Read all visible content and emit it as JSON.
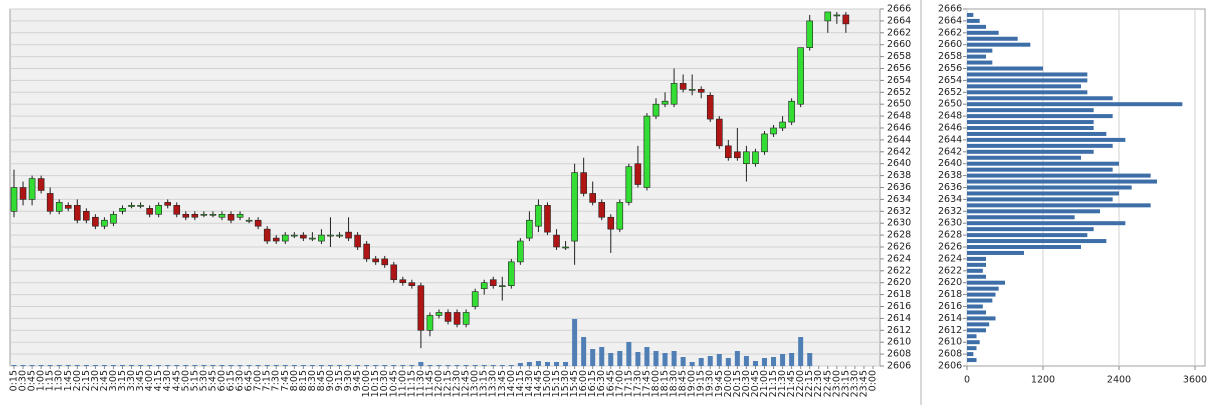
{
  "chart_data": [
    {
      "type": "candlestick",
      "categories": [
        "0:15",
        "0:30",
        "0:45",
        "1:00",
        "1:15",
        "1:30",
        "1:45",
        "2:00",
        "2:15",
        "2:30",
        "2:45",
        "3:00",
        "3:15",
        "3:30",
        "3:45",
        "4:00",
        "4:15",
        "4:30",
        "4:45",
        "5:00",
        "5:15",
        "5:30",
        "5:45",
        "6:00",
        "6:15",
        "6:30",
        "6:45",
        "7:00",
        "7:15",
        "7:30",
        "7:45",
        "8:00",
        "8:15",
        "8:30",
        "8:45",
        "9:00",
        "9:15",
        "9:30",
        "9:45",
        "10:00",
        "10:15",
        "10:30",
        "10:45",
        "11:00",
        "11:15",
        "11:30",
        "11:45",
        "12:00",
        "12:15",
        "12:30",
        "12:45",
        "13:00",
        "13:15",
        "13:30",
        "13:45",
        "14:00",
        "14:15",
        "14:30",
        "14:45",
        "15:00",
        "15:15",
        "15:30",
        "15:45",
        "16:00",
        "16:15",
        "16:30",
        "16:45",
        "17:00",
        "17:15",
        "17:30",
        "17:45",
        "18:00",
        "18:15",
        "18:30",
        "18:45",
        "19:00",
        "19:15",
        "19:30",
        "19:45",
        "20:00",
        "20:15",
        "20:30",
        "20:45",
        "21:00",
        "21:15",
        "21:30",
        "21:45",
        "22:00",
        "22:15",
        "22:30",
        "22:45",
        "23:00",
        "23:15",
        "23:30",
        "23:45",
        "0:00"
      ],
      "open": [
        2632,
        2636,
        2634,
        2637.5,
        2635,
        2632,
        2633,
        2633,
        2632,
        2631,
        2629.5,
        2630,
        2632,
        2632.8,
        2633,
        2632.5,
        2631.5,
        2633.5,
        2633,
        2631.5,
        2631.5,
        2631.5,
        2631.5,
        2631,
        2631.5,
        2631,
        2630.5,
        2630.5,
        2629,
        2627.5,
        2627,
        2628,
        2628,
        2627.5,
        2627,
        2628,
        2628,
        2628.5,
        2628,
        2626.5,
        2624,
        2624,
        2623,
        2620.5,
        2620,
        2619.5,
        2612,
        2614.5,
        2615,
        2615,
        2613,
        2616,
        2619,
        2620.5,
        2619.5,
        2619.5,
        2623.5,
        2627.5,
        2629.5,
        2633,
        2628,
        2626,
        2627,
        2638.5,
        2635,
        2633.5,
        2631,
        2629,
        2633.5,
        2640,
        2636,
        2648,
        2650,
        2650,
        2653.5,
        2652.5,
        2652.5,
        2651.5,
        2647.5,
        2643,
        2642,
        2640,
        2640,
        2642,
        2645,
        2646,
        2647,
        2650,
        2659.5,
        null,
        2664,
        2665,
        2665,
        null,
        null,
        null
      ],
      "high": [
        2639,
        2637,
        2638,
        2638,
        2636,
        2634,
        2633.5,
        2634,
        2632.5,
        2631.5,
        2631,
        2632,
        2633,
        2633.5,
        2633.5,
        2633,
        2633.5,
        2634,
        2633.5,
        2632,
        2632,
        2632,
        2632,
        2632,
        2632,
        2632,
        2631,
        2631,
        2629.5,
        2628,
        2628.5,
        2628.5,
        2628.5,
        2628.5,
        2629,
        2631,
        2628.5,
        2631,
        2628.5,
        2627,
        2624.5,
        2624.5,
        2623.5,
        2621,
        2620.5,
        2620,
        2615,
        2615.5,
        2615.5,
        2615.5,
        2615.5,
        2619,
        2620.5,
        2621,
        2621,
        2624,
        2627.5,
        2632,
        2634,
        2633.5,
        2629,
        2627,
        2640,
        2641,
        2637,
        2634,
        2631.5,
        2634,
        2640,
        2643,
        2648.5,
        2651,
        2652,
        2656,
        2655,
        2655,
        2653,
        2652,
        2648,
        2644,
        2646,
        2643,
        2642.5,
        2645.5,
        2646.5,
        2648,
        2651,
        2659.5,
        2665,
        null,
        2665.5,
        2665.5,
        2665.5,
        null,
        null,
        null
      ],
      "low": [
        2631,
        2633,
        2633,
        2635,
        2631.5,
        2631.5,
        2632,
        2630,
        2630,
        2629,
        2629,
        2629.5,
        2631.5,
        2632.5,
        2632.5,
        2631,
        2631,
        2632.5,
        2631,
        2630.5,
        2630.5,
        2631,
        2631,
        2630.5,
        2630,
        2630.5,
        2630,
        2629,
        2626.5,
        2626.5,
        2626.5,
        2627.5,
        2627,
        2627,
        2626.5,
        2626,
        2627.5,
        2627,
        2625.5,
        2623.5,
        2623,
        2622.5,
        2620,
        2619.5,
        2619,
        2609,
        2611,
        2614,
        2613,
        2612.5,
        2612.5,
        2615.5,
        2618,
        2619,
        2617,
        2619,
        2623,
        2627,
        2628.5,
        2628,
        2625.5,
        2625.5,
        2623,
        2634.5,
        2633,
        2630.5,
        2625,
        2628.5,
        2633,
        2636,
        2635.5,
        2647.5,
        2649.5,
        2649.5,
        2652,
        2651.5,
        2651,
        2647,
        2642.5,
        2640.5,
        2640.5,
        2637,
        2639.5,
        2641.5,
        2644.5,
        2645.5,
        2646.5,
        2649.5,
        2659,
        null,
        2662,
        2663.5,
        2662,
        null,
        null,
        null
      ],
      "close": [
        2636,
        2634,
        2637.5,
        2635.5,
        2632,
        2633.5,
        2632.5,
        2630.5,
        2630.5,
        2629.5,
        2630.5,
        2631.5,
        2632.5,
        2633,
        2633,
        2631.5,
        2633,
        2633,
        2631.5,
        2631,
        2631,
        2631.5,
        2631.5,
        2631.5,
        2630.5,
        2631.5,
        2630.5,
        2629.5,
        2627,
        2627,
        2628,
        2628,
        2627.5,
        2627.5,
        2628,
        2628,
        2628,
        2627.5,
        2626,
        2624,
        2623.5,
        2623,
        2620.5,
        2620,
        2619.5,
        2612,
        2614.5,
        2615,
        2613.5,
        2613,
        2615,
        2618.5,
        2620,
        2619.5,
        2619.5,
        2623.5,
        2627,
        2630.5,
        2633,
        2628.5,
        2626,
        2626,
        2638.5,
        2635,
        2633.5,
        2631,
        2629,
        2633.5,
        2639.5,
        2636.5,
        2648,
        2650,
        2650.5,
        2653.5,
        2652.5,
        2652.5,
        2652,
        2647.5,
        2643,
        2641,
        2641,
        2642,
        2642,
        2645,
        2646,
        2647,
        2650.5,
        2659.5,
        2664,
        null,
        2665.5,
        2665,
        2663.5,
        null,
        null,
        null
      ],
      "volume": [
        1,
        1,
        1,
        1,
        1,
        1,
        1,
        1,
        1,
        1,
        1,
        1,
        1,
        1,
        1,
        1,
        1,
        1,
        1,
        1,
        1,
        1,
        1,
        1,
        1,
        1,
        1,
        1,
        1,
        1,
        1,
        1,
        1,
        1,
        1,
        1,
        1,
        1,
        1,
        1,
        1,
        1,
        1,
        1,
        1,
        4,
        1,
        1,
        1,
        1,
        1,
        1,
        1,
        1,
        1,
        1,
        3,
        4,
        5,
        4,
        4,
        4,
        47,
        29,
        17,
        19,
        13,
        15,
        24,
        14,
        19,
        15,
        13,
        15,
        9,
        4,
        8,
        10,
        12,
        8,
        15,
        10,
        5,
        8,
        9,
        12,
        13,
        29,
        13,
        null,
        null,
        null,
        null,
        null,
        null,
        null
      ],
      "up_color": "#33dd33",
      "down_color": "#b01515",
      "volume_color": "#4f7fb5",
      "ylim": [
        2606,
        2666
      ],
      "yticks": [
        2606,
        2608,
        2610,
        2612,
        2614,
        2616,
        2618,
        2620,
        2622,
        2624,
        2626,
        2628,
        2630,
        2632,
        2634,
        2636,
        2638,
        2640,
        2642,
        2644,
        2646,
        2648,
        2650,
        2652,
        2654,
        2656,
        2658,
        2660,
        2662,
        2664,
        2666
      ],
      "grid": true
    },
    {
      "type": "hbar",
      "y": [
        2607,
        2608,
        2609,
        2610,
        2611,
        2612,
        2613,
        2614,
        2615,
        2616,
        2617,
        2618,
        2619,
        2620,
        2621,
        2622,
        2623,
        2624,
        2625,
        2626,
        2627,
        2628,
        2629,
        2630,
        2631,
        2632,
        2633,
        2634,
        2635,
        2636,
        2637,
        2638,
        2639,
        2640,
        2641,
        2642,
        2643,
        2644,
        2645,
        2646,
        2647,
        2648,
        2649,
        2650,
        2651,
        2652,
        2653,
        2654,
        2655,
        2656,
        2657,
        2658,
        2659,
        2660,
        2661,
        2662,
        2663,
        2664,
        2665
      ],
      "values": [
        150,
        100,
        150,
        200,
        150,
        300,
        350,
        450,
        300,
        250,
        400,
        450,
        500,
        600,
        300,
        250,
        300,
        300,
        900,
        1800,
        2200,
        1900,
        2000,
        2500,
        1700,
        2100,
        2900,
        2300,
        2400,
        2600,
        3000,
        2900,
        2300,
        2400,
        1800,
        2000,
        2300,
        2500,
        2200,
        2000,
        2000,
        2300,
        2000,
        3400,
        2300,
        1900,
        1800,
        1900,
        1900,
        1200,
        400,
        300,
        400,
        1000,
        800,
        500,
        300,
        200,
        100
      ],
      "color": "#3d6ea8",
      "xlim": [
        0,
        3600
      ],
      "xticks": [
        0,
        1200,
        2400,
        3600
      ],
      "ylim": [
        2606,
        2666
      ],
      "yticks": [
        2606,
        2608,
        2610,
        2612,
        2614,
        2616,
        2618,
        2620,
        2622,
        2624,
        2626,
        2628,
        2630,
        2632,
        2634,
        2636,
        2638,
        2640,
        2642,
        2644,
        2646,
        2648,
        2650,
        2652,
        2654,
        2656,
        2658,
        2660,
        2662,
        2664,
        2666
      ],
      "grid": true
    }
  ]
}
